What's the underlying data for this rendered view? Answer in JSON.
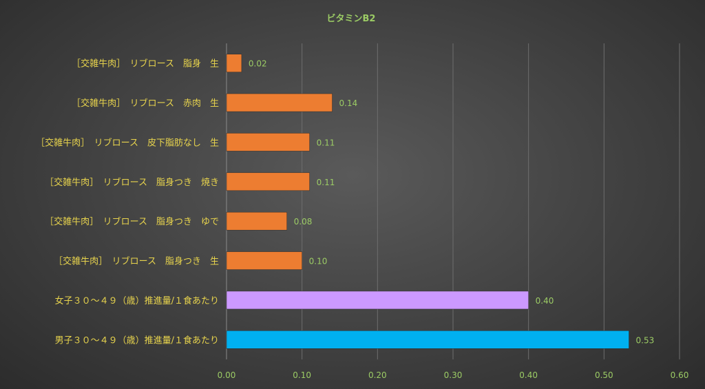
{
  "chart_data": {
    "type": "bar",
    "orientation": "horizontal",
    "title": "ビタミンB2",
    "xlabel": "",
    "ylabel": "",
    "xlim": [
      0,
      0.6
    ],
    "ticks": [
      "0.00",
      "0.10",
      "0.20",
      "0.30",
      "0.40",
      "0.50",
      "0.60"
    ],
    "grid": true,
    "legend": "none",
    "categories": [
      "［交雑牛肉］　リブロース　脂身　生",
      "［交雑牛肉］　リブロース　赤肉　生",
      "［交雑牛肉］　リブロース　皮下脂肪なし　生",
      "［交雑牛肉］　リブロース　脂身つき　焼き",
      "［交雑牛肉］　リブロース　脂身つき　ゆで",
      "［交雑牛肉］　リブロース　脂身つき　生",
      "女子３０～４９（歳）推進量/１食あたり",
      "男子３０～４９（歳）推進量/１食あたり"
    ],
    "values": [
      0.02,
      0.14,
      0.11,
      0.11,
      0.08,
      0.1,
      0.4,
      0.533
    ],
    "value_labels": [
      "0.02",
      "0.14",
      "0.11",
      "0.11",
      "0.08",
      "0.10",
      "0.40",
      "0.53"
    ],
    "bar_colors": [
      "#ed7d31",
      "#ed7d31",
      "#ed7d31",
      "#ed7d31",
      "#ed7d31",
      "#ed7d31",
      "#cc99ff",
      "#00b0f0"
    ]
  }
}
